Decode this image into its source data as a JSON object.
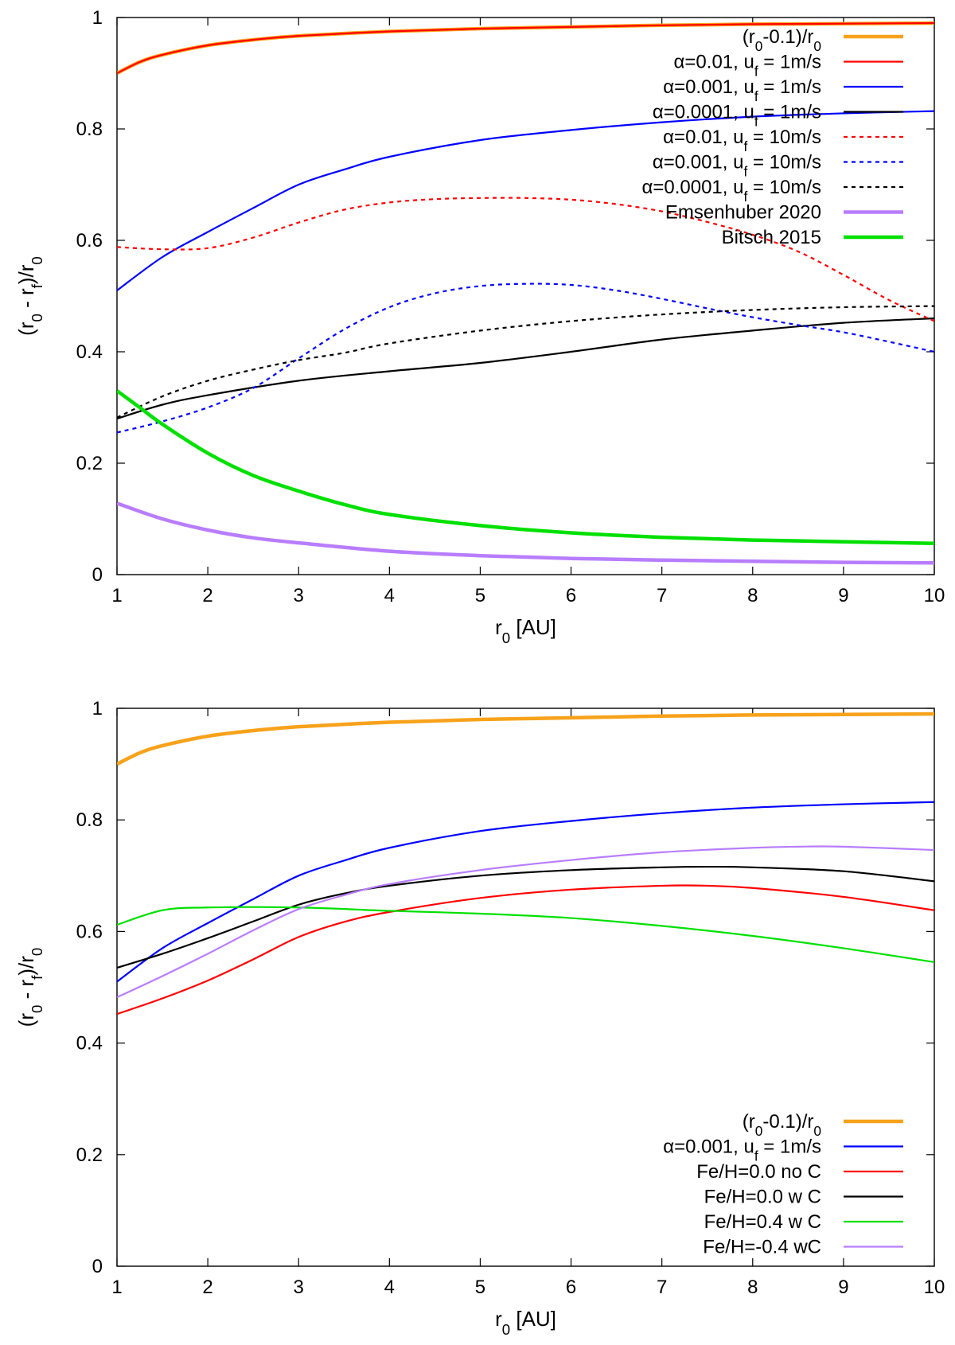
{
  "chart_data": [
    {
      "type": "line",
      "xlabel": "r_0 [AU]",
      "ylabel": "(r_0 - r_f)/r_0",
      "xlim": [
        1,
        10
      ],
      "ylim": [
        0,
        1
      ],
      "xticks": [
        1,
        2,
        3,
        4,
        5,
        6,
        7,
        8,
        9,
        10
      ],
      "xtick_labels": [
        "1",
        "2",
        "3",
        "4",
        "5",
        "6",
        "7",
        "8",
        "9",
        "10"
      ],
      "yticks": [
        0,
        0.2,
        0.4,
        0.6,
        0.8,
        1
      ],
      "ytick_labels": [
        "0",
        "0.2",
        "0.4",
        "0.6",
        "0.8",
        "1"
      ],
      "legend_position": "top-right",
      "series": [
        {
          "name": "(r_0-0.1)/r_0",
          "color": "#f7a21b",
          "style": "solid",
          "weight": "thick",
          "x": [
            1,
            1.25,
            1.5,
            2,
            2.5,
            3,
            4,
            5,
            6,
            7,
            8,
            9,
            10
          ],
          "values": [
            0.9,
            0.92,
            0.933,
            0.95,
            0.96,
            0.967,
            0.975,
            0.98,
            0.983,
            0.986,
            0.988,
            0.989,
            0.99
          ]
        },
        {
          "name": "α=0.01, u_f = 1m/s",
          "color": "#ff0000",
          "style": "solid",
          "weight": "normal",
          "x": [
            1,
            1.25,
            1.5,
            2,
            2.5,
            3,
            4,
            5,
            6,
            7,
            8,
            9,
            10
          ],
          "values": [
            0.9,
            0.92,
            0.933,
            0.95,
            0.96,
            0.967,
            0.975,
            0.98,
            0.983,
            0.986,
            0.988,
            0.989,
            0.99
          ]
        },
        {
          "name": "α=0.001, u_f = 1m/s",
          "color": "#0000ff",
          "style": "solid",
          "weight": "normal",
          "x": [
            1,
            1.5,
            2,
            2.5,
            3,
            3.5,
            4,
            5,
            6,
            7,
            8,
            9,
            10
          ],
          "values": [
            0.51,
            0.57,
            0.615,
            0.658,
            0.7,
            0.727,
            0.75,
            0.78,
            0.798,
            0.812,
            0.822,
            0.828,
            0.832
          ]
        },
        {
          "name": "α=0.0001, u_f = 1m/s",
          "color": "#000000",
          "style": "solid",
          "weight": "normal",
          "x": [
            1,
            1.5,
            2,
            3,
            4,
            5,
            6,
            7,
            8,
            9,
            10
          ],
          "values": [
            0.28,
            0.305,
            0.322,
            0.348,
            0.365,
            0.38,
            0.4,
            0.422,
            0.438,
            0.452,
            0.46
          ]
        },
        {
          "name": "α=0.01, u_f = 10m/s",
          "color": "#ff0000",
          "style": "dashed",
          "weight": "normal",
          "x": [
            1,
            1.5,
            2,
            2.5,
            3,
            3.5,
            4,
            4.5,
            5,
            5.5,
            6,
            6.5,
            7,
            7.5,
            8,
            8.5,
            9,
            9.5,
            10
          ],
          "values": [
            0.588,
            0.584,
            0.586,
            0.605,
            0.632,
            0.655,
            0.668,
            0.674,
            0.676,
            0.676,
            0.673,
            0.665,
            0.652,
            0.633,
            0.61,
            0.58,
            0.538,
            0.493,
            0.455
          ]
        },
        {
          "name": "α=0.001, u_f = 10m/s",
          "color": "#0000ff",
          "style": "dashed",
          "weight": "normal",
          "x": [
            1,
            1.5,
            2,
            2.5,
            3,
            3.5,
            4,
            4.5,
            5,
            5.5,
            6,
            6.5,
            7,
            7.5,
            8,
            8.5,
            9,
            9.5,
            10
          ],
          "values": [
            0.255,
            0.275,
            0.3,
            0.335,
            0.388,
            0.44,
            0.48,
            0.505,
            0.518,
            0.522,
            0.52,
            0.51,
            0.495,
            0.478,
            0.462,
            0.448,
            0.435,
            0.418,
            0.4
          ]
        },
        {
          "name": "α=0.0001, u_f = 10m/s",
          "color": "#000000",
          "style": "dashed",
          "weight": "normal",
          "x": [
            1,
            1.5,
            2,
            2.5,
            3,
            3.5,
            4,
            5,
            6,
            7,
            8,
            9,
            10
          ],
          "values": [
            0.282,
            0.32,
            0.348,
            0.368,
            0.385,
            0.398,
            0.415,
            0.438,
            0.455,
            0.467,
            0.475,
            0.48,
            0.482
          ]
        },
        {
          "name": "Emsenhuber 2020",
          "color": "#b87dff",
          "style": "solid",
          "weight": "thick",
          "x": [
            1,
            1.5,
            2,
            2.5,
            3,
            4,
            5,
            6,
            7,
            8,
            9,
            10
          ],
          "values": [
            0.128,
            0.1,
            0.08,
            0.066,
            0.057,
            0.042,
            0.034,
            0.029,
            0.026,
            0.024,
            0.022,
            0.021
          ]
        },
        {
          "name": "Bitsch 2015",
          "color": "#00e000",
          "style": "solid",
          "weight": "thick",
          "x": [
            1,
            1.25,
            1.5,
            2,
            2.5,
            3,
            3.5,
            4,
            5,
            6,
            7,
            8,
            9,
            10
          ],
          "values": [
            0.33,
            0.3,
            0.27,
            0.218,
            0.178,
            0.15,
            0.126,
            0.108,
            0.088,
            0.075,
            0.067,
            0.062,
            0.059,
            0.056
          ]
        }
      ]
    },
    {
      "type": "line",
      "xlabel": "r_0 [AU]",
      "ylabel": "(r_0 - r_f)/r_0",
      "xlim": [
        1,
        10
      ],
      "ylim": [
        0,
        1
      ],
      "xticks": [
        1,
        2,
        3,
        4,
        5,
        6,
        7,
        8,
        9,
        10
      ],
      "xtick_labels": [
        "1",
        "2",
        "3",
        "4",
        "5",
        "6",
        "7",
        "8",
        "9",
        "10"
      ],
      "yticks": [
        0,
        0.2,
        0.4,
        0.6,
        0.8,
        1
      ],
      "ytick_labels": [
        "0",
        "0.2",
        "0.4",
        "0.6",
        "0.8",
        "1"
      ],
      "legend_position": "bottom-right",
      "series": [
        {
          "name": "(r_0-0.1)/r_0",
          "color": "#f7a21b",
          "style": "solid",
          "weight": "thick",
          "x": [
            1,
            1.25,
            1.5,
            2,
            2.5,
            3,
            4,
            5,
            6,
            7,
            8,
            9,
            10
          ],
          "values": [
            0.9,
            0.92,
            0.933,
            0.95,
            0.96,
            0.967,
            0.975,
            0.98,
            0.983,
            0.986,
            0.988,
            0.989,
            0.99
          ]
        },
        {
          "name": "α=0.001, u_f = 1m/s",
          "color": "#0000ff",
          "style": "solid",
          "weight": "normal",
          "x": [
            1,
            1.5,
            2,
            2.5,
            3,
            3.5,
            4,
            5,
            6,
            7,
            8,
            9,
            10
          ],
          "values": [
            0.51,
            0.57,
            0.615,
            0.658,
            0.7,
            0.727,
            0.75,
            0.78,
            0.798,
            0.812,
            0.822,
            0.828,
            0.832
          ]
        },
        {
          "name": "Fe/H=0.0 no C",
          "color": "#ff0000",
          "style": "solid",
          "weight": "normal",
          "x": [
            1,
            1.5,
            2,
            2.5,
            3,
            3.5,
            4,
            5,
            6,
            7,
            7.5,
            8,
            9,
            10
          ],
          "values": [
            0.452,
            0.48,
            0.512,
            0.55,
            0.59,
            0.617,
            0.635,
            0.66,
            0.675,
            0.682,
            0.682,
            0.678,
            0.662,
            0.638
          ]
        },
        {
          "name": "Fe/H=0.0 w C",
          "color": "#000000",
          "style": "solid",
          "weight": "normal",
          "x": [
            1,
            1.5,
            2,
            2.5,
            3,
            3.5,
            4,
            5,
            6,
            7,
            7.5,
            8,
            9,
            10
          ],
          "values": [
            0.535,
            0.56,
            0.588,
            0.618,
            0.648,
            0.668,
            0.682,
            0.7,
            0.71,
            0.715,
            0.716,
            0.715,
            0.708,
            0.69
          ]
        },
        {
          "name": "Fe/H=0.4 w C",
          "color": "#00e000",
          "style": "solid",
          "weight": "normal",
          "x": [
            1,
            1.5,
            2,
            3,
            4,
            5,
            6,
            7,
            8,
            9,
            10
          ],
          "values": [
            0.612,
            0.638,
            0.643,
            0.643,
            0.637,
            0.632,
            0.624,
            0.61,
            0.592,
            0.57,
            0.545
          ]
        },
        {
          "name": "Fe/H=-0.4 wC",
          "color": "#b87dff",
          "style": "solid",
          "weight": "normal",
          "x": [
            1,
            1.5,
            2,
            2.5,
            3,
            3.5,
            4,
            5,
            6,
            7,
            8,
            8.5,
            9,
            10
          ],
          "values": [
            0.482,
            0.52,
            0.56,
            0.602,
            0.64,
            0.665,
            0.685,
            0.71,
            0.728,
            0.742,
            0.75,
            0.752,
            0.752,
            0.746
          ]
        }
      ]
    }
  ]
}
